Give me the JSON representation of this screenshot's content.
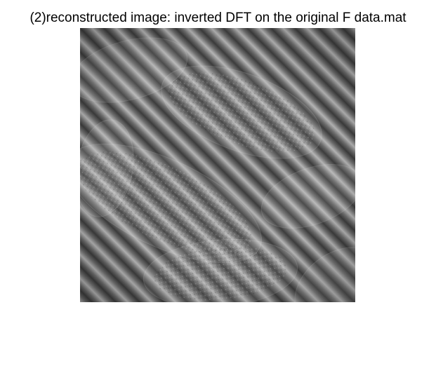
{
  "figure": {
    "title": "(2)reconstructed image: inverted DFT on the original F data.mat"
  },
  "image": {
    "content": "grayscale-diagonal-stripes-with-faint-leaf-shapes",
    "colormap": "gray"
  }
}
